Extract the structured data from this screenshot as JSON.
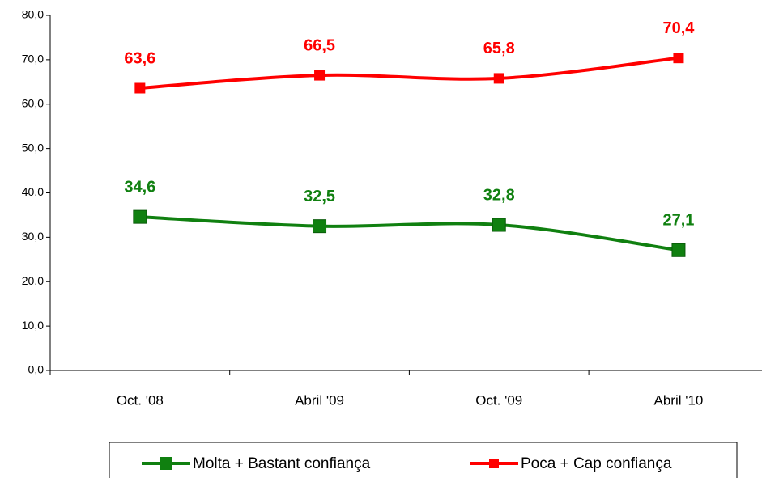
{
  "chart_data": {
    "type": "line",
    "categories": [
      "Oct. '08",
      "Abril '09",
      "Oct. '09",
      "Abril '10"
    ],
    "series": [
      {
        "name": "Molta + Bastant confiança",
        "color": "#108010",
        "values": [
          34.6,
          32.5,
          32.8,
          27.1
        ],
        "value_labels": [
          "34,6",
          "32,5",
          "32,8",
          "27,1"
        ]
      },
      {
        "name": "Poca + Cap confiança",
        "color": "#ff0000",
        "values": [
          63.6,
          66.5,
          65.8,
          70.4
        ],
        "value_labels": [
          "63,6",
          "66,5",
          "65,8",
          "70,4"
        ]
      }
    ],
    "ylim": [
      0,
      80
    ],
    "yticks": [
      {
        "value": 0,
        "label": "0,0"
      },
      {
        "value": 10,
        "label": "10,0"
      },
      {
        "value": 20,
        "label": "20,0"
      },
      {
        "value": 30,
        "label": "30,0"
      },
      {
        "value": 40,
        "label": "40,0"
      },
      {
        "value": 50,
        "label": "50,0"
      },
      {
        "value": 60,
        "label": "60,0"
      },
      {
        "value": 70,
        "label": "70,0"
      },
      {
        "value": 80,
        "label": "80,0"
      }
    ],
    "grid": false
  }
}
